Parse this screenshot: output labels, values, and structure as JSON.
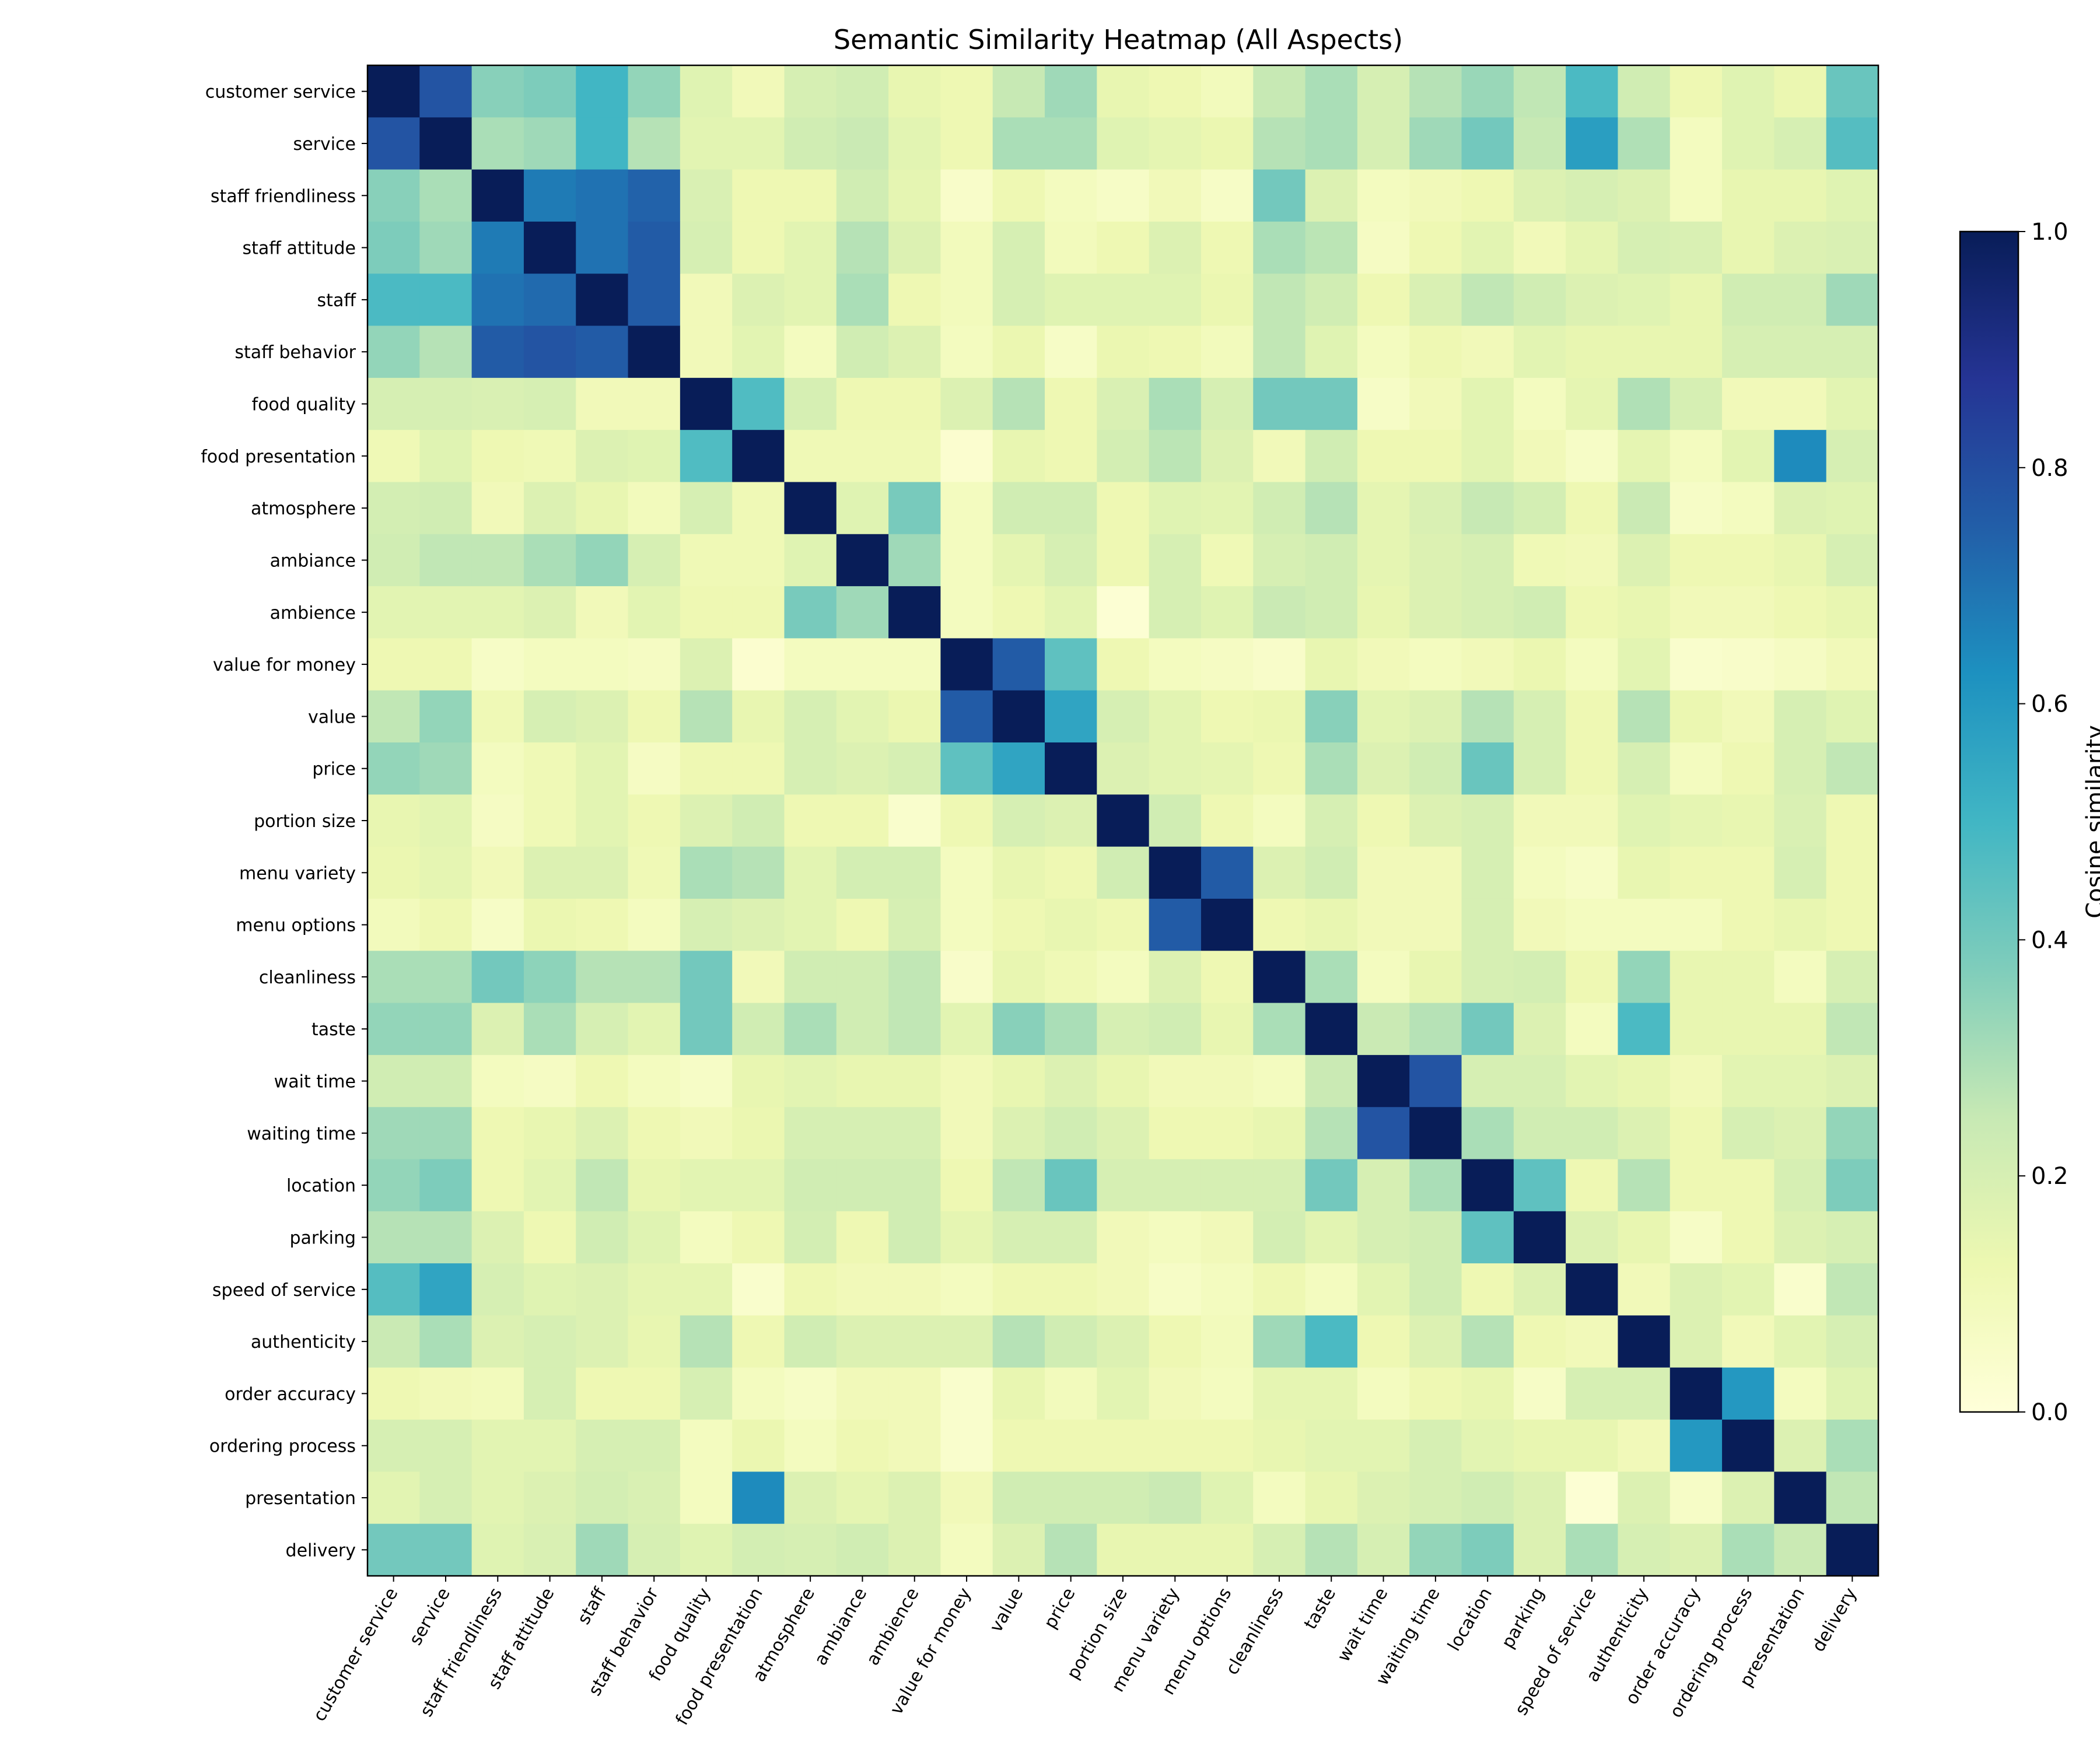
{
  "chart_data": {
    "type": "heatmap",
    "title": "Semantic Similarity Heatmap (All Aspects)",
    "xlabel": "",
    "ylabel": "",
    "colormap": "YlGnBu",
    "grid": false,
    "labels": [
      "customer service",
      "service",
      "staff friendliness",
      "staff attitude",
      "staff",
      "staff behavior",
      "food quality",
      "food presentation",
      "atmosphere",
      "ambiance",
      "ambience",
      "value for money",
      "value",
      "price",
      "portion size",
      "menu variety",
      "menu options",
      "cleanliness",
      "taste",
      "wait time",
      "waiting time",
      "location",
      "parking",
      "speed of service",
      "authenticity",
      "order accuracy",
      "ordering process",
      "presentation",
      "delivery"
    ],
    "values": [
      [
        1.0,
        0.78,
        0.36,
        0.38,
        0.5,
        0.34,
        0.17,
        0.1,
        0.2,
        0.22,
        0.14,
        0.12,
        0.25,
        0.32,
        0.14,
        0.12,
        0.09,
        0.25,
        0.3,
        0.2,
        0.28,
        0.33,
        0.26,
        0.48,
        0.22,
        0.12,
        0.17,
        0.13,
        0.42
      ],
      [
        0.78,
        1.0,
        0.3,
        0.32,
        0.5,
        0.28,
        0.16,
        0.16,
        0.22,
        0.24,
        0.16,
        0.12,
        0.3,
        0.3,
        0.17,
        0.15,
        0.13,
        0.28,
        0.3,
        0.2,
        0.32,
        0.4,
        0.25,
        0.58,
        0.29,
        0.08,
        0.17,
        0.2,
        0.46
      ],
      [
        0.36,
        0.3,
        1.0,
        0.68,
        0.7,
        0.74,
        0.19,
        0.12,
        0.12,
        0.22,
        0.15,
        0.05,
        0.12,
        0.08,
        0.06,
        0.1,
        0.06,
        0.4,
        0.18,
        0.08,
        0.1,
        0.12,
        0.18,
        0.2,
        0.18,
        0.08,
        0.14,
        0.14,
        0.17
      ],
      [
        0.38,
        0.32,
        0.68,
        1.0,
        0.7,
        0.76,
        0.2,
        0.12,
        0.16,
        0.28,
        0.18,
        0.09,
        0.2,
        0.09,
        0.12,
        0.18,
        0.12,
        0.3,
        0.27,
        0.07,
        0.12,
        0.16,
        0.1,
        0.15,
        0.2,
        0.19,
        0.14,
        0.18,
        0.19
      ],
      [
        0.48,
        0.48,
        0.7,
        0.72,
        1.0,
        0.76,
        0.1,
        0.18,
        0.16,
        0.3,
        0.12,
        0.09,
        0.2,
        0.17,
        0.17,
        0.17,
        0.13,
        0.26,
        0.22,
        0.12,
        0.19,
        0.26,
        0.22,
        0.18,
        0.17,
        0.14,
        0.22,
        0.22,
        0.32
      ],
      [
        0.34,
        0.28,
        0.76,
        0.78,
        0.76,
        1.0,
        0.1,
        0.16,
        0.08,
        0.22,
        0.18,
        0.08,
        0.13,
        0.06,
        0.13,
        0.12,
        0.09,
        0.26,
        0.17,
        0.08,
        0.12,
        0.1,
        0.16,
        0.14,
        0.14,
        0.14,
        0.2,
        0.2,
        0.2
      ],
      [
        0.2,
        0.2,
        0.19,
        0.2,
        0.1,
        0.1,
        1.0,
        0.47,
        0.2,
        0.12,
        0.12,
        0.18,
        0.28,
        0.12,
        0.19,
        0.3,
        0.2,
        0.4,
        0.4,
        0.06,
        0.1,
        0.16,
        0.08,
        0.15,
        0.29,
        0.2,
        0.1,
        0.1,
        0.16
      ],
      [
        0.11,
        0.17,
        0.12,
        0.11,
        0.18,
        0.17,
        0.47,
        1.0,
        0.11,
        0.11,
        0.11,
        0.03,
        0.14,
        0.12,
        0.21,
        0.27,
        0.18,
        0.1,
        0.22,
        0.12,
        0.12,
        0.16,
        0.1,
        0.06,
        0.15,
        0.08,
        0.16,
        0.64,
        0.2
      ],
      [
        0.21,
        0.22,
        0.1,
        0.18,
        0.14,
        0.09,
        0.2,
        0.11,
        1.0,
        0.17,
        0.39,
        0.08,
        0.22,
        0.22,
        0.12,
        0.17,
        0.16,
        0.22,
        0.28,
        0.15,
        0.19,
        0.25,
        0.21,
        0.12,
        0.24,
        0.06,
        0.08,
        0.18,
        0.17
      ],
      [
        0.22,
        0.26,
        0.26,
        0.3,
        0.34,
        0.2,
        0.11,
        0.11,
        0.17,
        1.0,
        0.32,
        0.08,
        0.15,
        0.2,
        0.12,
        0.2,
        0.11,
        0.2,
        0.22,
        0.15,
        0.18,
        0.2,
        0.11,
        0.1,
        0.18,
        0.12,
        0.12,
        0.14,
        0.2
      ],
      [
        0.16,
        0.16,
        0.16,
        0.18,
        0.1,
        0.16,
        0.12,
        0.12,
        0.39,
        0.32,
        1.0,
        0.08,
        0.12,
        0.16,
        0.02,
        0.2,
        0.17,
        0.24,
        0.22,
        0.14,
        0.18,
        0.2,
        0.22,
        0.12,
        0.14,
        0.1,
        0.1,
        0.12,
        0.14
      ],
      [
        0.12,
        0.12,
        0.06,
        0.08,
        0.08,
        0.07,
        0.18,
        0.03,
        0.08,
        0.08,
        0.08,
        1.0,
        0.76,
        0.44,
        0.12,
        0.08,
        0.07,
        0.05,
        0.14,
        0.1,
        0.08,
        0.1,
        0.13,
        0.08,
        0.16,
        0.04,
        0.05,
        0.07,
        0.1
      ],
      [
        0.26,
        0.34,
        0.11,
        0.2,
        0.18,
        0.12,
        0.28,
        0.14,
        0.2,
        0.16,
        0.13,
        0.76,
        1.0,
        0.56,
        0.2,
        0.16,
        0.12,
        0.13,
        0.36,
        0.16,
        0.18,
        0.28,
        0.2,
        0.12,
        0.28,
        0.13,
        0.1,
        0.2,
        0.17
      ],
      [
        0.34,
        0.32,
        0.08,
        0.11,
        0.16,
        0.07,
        0.12,
        0.12,
        0.2,
        0.18,
        0.2,
        0.44,
        0.56,
        1.0,
        0.18,
        0.16,
        0.15,
        0.12,
        0.3,
        0.18,
        0.22,
        0.42,
        0.2,
        0.12,
        0.2,
        0.08,
        0.12,
        0.2,
        0.26
      ],
      [
        0.14,
        0.16,
        0.07,
        0.11,
        0.16,
        0.12,
        0.18,
        0.22,
        0.12,
        0.12,
        0.04,
        0.12,
        0.2,
        0.18,
        1.0,
        0.22,
        0.12,
        0.08,
        0.2,
        0.12,
        0.18,
        0.2,
        0.1,
        0.1,
        0.17,
        0.15,
        0.14,
        0.19,
        0.12
      ],
      [
        0.13,
        0.15,
        0.1,
        0.18,
        0.18,
        0.11,
        0.3,
        0.28,
        0.16,
        0.21,
        0.21,
        0.08,
        0.14,
        0.12,
        0.22,
        1.0,
        0.76,
        0.18,
        0.22,
        0.1,
        0.1,
        0.2,
        0.08,
        0.06,
        0.14,
        0.12,
        0.12,
        0.2,
        0.12
      ],
      [
        0.09,
        0.12,
        0.06,
        0.13,
        0.12,
        0.08,
        0.2,
        0.18,
        0.16,
        0.12,
        0.2,
        0.08,
        0.12,
        0.14,
        0.12,
        0.76,
        1.0,
        0.12,
        0.14,
        0.1,
        0.1,
        0.2,
        0.1,
        0.08,
        0.08,
        0.08,
        0.12,
        0.14,
        0.12
      ],
      [
        0.3,
        0.3,
        0.4,
        0.35,
        0.28,
        0.28,
        0.4,
        0.1,
        0.22,
        0.22,
        0.26,
        0.05,
        0.14,
        0.11,
        0.08,
        0.18,
        0.12,
        1.0,
        0.3,
        0.08,
        0.14,
        0.2,
        0.21,
        0.12,
        0.34,
        0.14,
        0.14,
        0.08,
        0.2
      ],
      [
        0.34,
        0.34,
        0.18,
        0.3,
        0.2,
        0.16,
        0.4,
        0.22,
        0.3,
        0.22,
        0.26,
        0.16,
        0.36,
        0.3,
        0.2,
        0.22,
        0.14,
        0.3,
        1.0,
        0.24,
        0.28,
        0.4,
        0.18,
        0.08,
        0.48,
        0.14,
        0.14,
        0.14,
        0.26
      ],
      [
        0.22,
        0.22,
        0.08,
        0.07,
        0.12,
        0.08,
        0.06,
        0.14,
        0.16,
        0.14,
        0.14,
        0.1,
        0.14,
        0.18,
        0.14,
        0.1,
        0.1,
        0.08,
        0.24,
        1.0,
        0.78,
        0.2,
        0.2,
        0.16,
        0.14,
        0.1,
        0.16,
        0.16,
        0.18
      ],
      [
        0.32,
        0.32,
        0.12,
        0.14,
        0.18,
        0.12,
        0.1,
        0.13,
        0.2,
        0.2,
        0.2,
        0.1,
        0.18,
        0.22,
        0.18,
        0.12,
        0.12,
        0.14,
        0.28,
        0.78,
        1.0,
        0.3,
        0.22,
        0.22,
        0.18,
        0.12,
        0.2,
        0.18,
        0.34
      ],
      [
        0.34,
        0.38,
        0.12,
        0.16,
        0.26,
        0.14,
        0.16,
        0.16,
        0.22,
        0.22,
        0.22,
        0.12,
        0.26,
        0.42,
        0.2,
        0.2,
        0.2,
        0.2,
        0.4,
        0.2,
        0.3,
        1.0,
        0.44,
        0.12,
        0.28,
        0.12,
        0.12,
        0.2,
        0.38
      ],
      [
        0.28,
        0.28,
        0.18,
        0.12,
        0.22,
        0.17,
        0.08,
        0.12,
        0.21,
        0.12,
        0.22,
        0.15,
        0.2,
        0.2,
        0.1,
        0.08,
        0.1,
        0.21,
        0.16,
        0.2,
        0.22,
        0.44,
        1.0,
        0.18,
        0.14,
        0.06,
        0.12,
        0.18,
        0.2
      ],
      [
        0.46,
        0.56,
        0.2,
        0.17,
        0.18,
        0.15,
        0.15,
        0.04,
        0.12,
        0.1,
        0.1,
        0.08,
        0.12,
        0.12,
        0.1,
        0.06,
        0.08,
        0.12,
        0.08,
        0.16,
        0.22,
        0.12,
        0.18,
        1.0,
        0.1,
        0.18,
        0.16,
        0.04,
        0.26
      ],
      [
        0.24,
        0.3,
        0.18,
        0.2,
        0.18,
        0.14,
        0.28,
        0.12,
        0.22,
        0.18,
        0.18,
        0.18,
        0.28,
        0.22,
        0.18,
        0.12,
        0.09,
        0.32,
        0.48,
        0.12,
        0.18,
        0.28,
        0.12,
        0.1,
        1.0,
        0.18,
        0.1,
        0.16,
        0.2
      ],
      [
        0.12,
        0.1,
        0.09,
        0.2,
        0.12,
        0.12,
        0.2,
        0.08,
        0.06,
        0.1,
        0.1,
        0.04,
        0.14,
        0.09,
        0.16,
        0.1,
        0.08,
        0.15,
        0.15,
        0.08,
        0.12,
        0.14,
        0.06,
        0.2,
        0.2,
        1.0,
        0.6,
        0.08,
        0.17
      ],
      [
        0.2,
        0.2,
        0.16,
        0.16,
        0.2,
        0.2,
        0.08,
        0.13,
        0.08,
        0.12,
        0.1,
        0.04,
        0.12,
        0.12,
        0.12,
        0.12,
        0.12,
        0.14,
        0.16,
        0.16,
        0.2,
        0.16,
        0.14,
        0.14,
        0.1,
        0.6,
        1.0,
        0.18,
        0.3
      ],
      [
        0.16,
        0.2,
        0.16,
        0.18,
        0.21,
        0.19,
        0.08,
        0.64,
        0.18,
        0.15,
        0.18,
        0.1,
        0.22,
        0.22,
        0.22,
        0.24,
        0.17,
        0.08,
        0.14,
        0.18,
        0.2,
        0.22,
        0.18,
        0.02,
        0.18,
        0.06,
        0.18,
        1.0,
        0.26
      ],
      [
        0.4,
        0.4,
        0.17,
        0.19,
        0.32,
        0.2,
        0.17,
        0.21,
        0.2,
        0.22,
        0.18,
        0.08,
        0.18,
        0.28,
        0.14,
        0.14,
        0.14,
        0.2,
        0.28,
        0.2,
        0.34,
        0.38,
        0.18,
        0.3,
        0.2,
        0.18,
        0.3,
        0.24,
        1.0
      ]
    ],
    "vmin": 0.0,
    "vmax": 1.0,
    "colorbar": {
      "label": "Cosine similarity",
      "ticks": [
        "0.0",
        "0.2",
        "0.4",
        "0.6",
        "0.8",
        "1.0"
      ]
    },
    "legend_position": "right"
  }
}
